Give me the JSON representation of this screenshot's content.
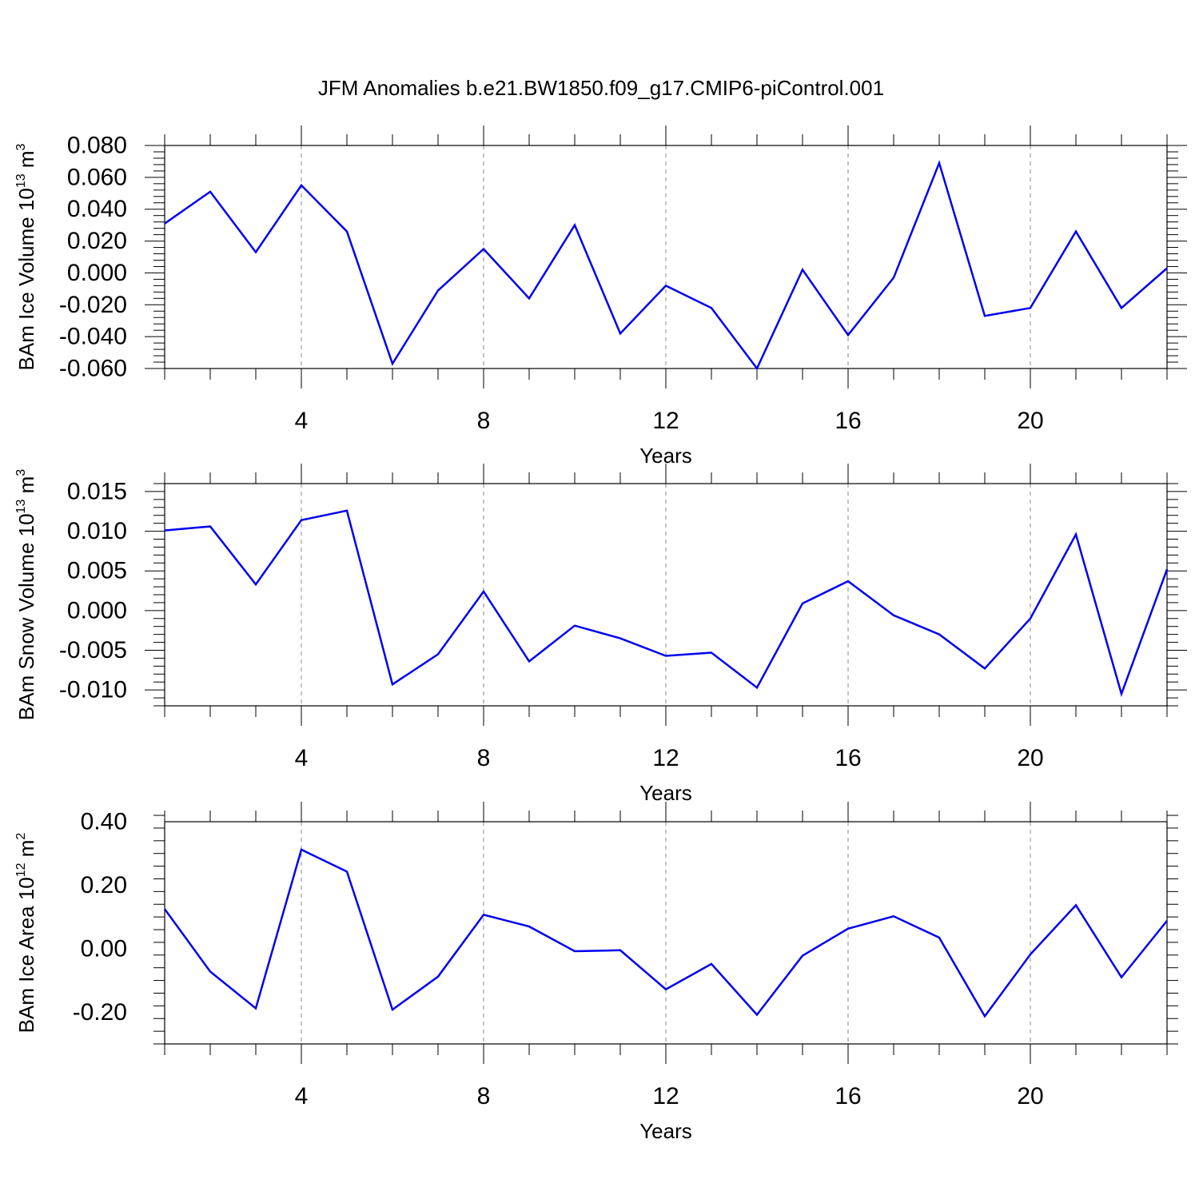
{
  "title": "JFM Anomalies b.e21.BW1850.f09_g17.CMIP6-piControl.001",
  "colors": {
    "line": "#0000ee",
    "axis": "#000000",
    "grid": "#888888"
  },
  "chart_data": [
    {
      "type": "line",
      "xlabel": "Years",
      "ylabel": "BAm Ice Volume 10",
      "ylabel_exp": "13",
      "ylabel_unit": " m",
      "ylabel_unit_exp": "3",
      "xlim": [
        1,
        23
      ],
      "ylim": [
        -0.06,
        0.08
      ],
      "x_ticks": [
        4,
        8,
        12,
        16,
        20
      ],
      "y_ticks": [
        0.08,
        0.06,
        0.04,
        0.02,
        0.0,
        -0.02,
        -0.04,
        -0.06
      ],
      "y_tick_labels": [
        "0.080",
        "0.060",
        "0.040",
        "0.020",
        "0.000",
        "-0.020",
        "-0.040",
        "-0.060"
      ],
      "grid": "dashed vertical at major x ticks",
      "x": [
        1,
        2,
        3,
        4,
        5,
        6,
        7,
        8,
        9,
        10,
        11,
        12,
        13,
        14,
        15,
        16,
        17,
        18,
        19,
        20,
        21,
        22,
        23
      ],
      "values": [
        0.031,
        0.051,
        0.013,
        0.055,
        0.026,
        -0.057,
        -0.011,
        0.015,
        -0.016,
        0.03,
        -0.038,
        -0.008,
        -0.022,
        -0.06,
        0.002,
        -0.039,
        -0.003,
        0.069,
        -0.027,
        -0.022,
        0.026,
        -0.022,
        0.003
      ]
    },
    {
      "type": "line",
      "xlabel": "Years",
      "ylabel": "BAm Snow Volume 10",
      "ylabel_exp": "13",
      "ylabel_unit": " m",
      "ylabel_unit_exp": "3",
      "xlim": [
        1,
        23
      ],
      "ylim": [
        -0.012,
        0.016
      ],
      "x_ticks": [
        4,
        8,
        12,
        16,
        20
      ],
      "y_ticks": [
        0.015,
        0.01,
        0.005,
        0.0,
        -0.005,
        -0.01
      ],
      "y_tick_labels": [
        "0.015",
        "0.010",
        "0.005",
        "0.000",
        "-0.005",
        "-0.010"
      ],
      "grid": "dashed vertical at major x ticks",
      "x": [
        1,
        2,
        3,
        4,
        5,
        6,
        7,
        8,
        9,
        10,
        11,
        12,
        13,
        14,
        15,
        16,
        17,
        18,
        19,
        20,
        21,
        22,
        23
      ],
      "values": [
        0.0101,
        0.0106,
        0.0033,
        0.0114,
        0.0126,
        -0.0093,
        -0.0055,
        0.0024,
        -0.0064,
        -0.0019,
        -0.0035,
        -0.0057,
        -0.0053,
        -0.0097,
        0.0009,
        0.0037,
        -0.0006,
        -0.003,
        -0.0073,
        -0.001,
        0.0096,
        -0.0105,
        0.0052
      ]
    },
    {
      "type": "line",
      "xlabel": "Years",
      "ylabel": "BAm Ice Area 10",
      "ylabel_exp": "12",
      "ylabel_unit": " m",
      "ylabel_unit_exp": "2",
      "xlim": [
        1,
        23
      ],
      "ylim": [
        -0.3,
        0.4
      ],
      "x_ticks": [
        4,
        8,
        12,
        16,
        20
      ],
      "y_ticks": [
        0.4,
        0.2,
        0.0,
        -0.2
      ],
      "y_tick_labels": [
        "0.40",
        "0.20",
        "0.00",
        "-0.20"
      ],
      "grid": "dashed vertical at major x ticks",
      "x": [
        1,
        2,
        3,
        4,
        5,
        6,
        7,
        8,
        9,
        10,
        11,
        12,
        13,
        14,
        15,
        16,
        17,
        18,
        19,
        20,
        21,
        22,
        23
      ],
      "values": [
        0.125,
        -0.072,
        -0.188,
        0.312,
        0.243,
        -0.192,
        -0.088,
        0.107,
        0.07,
        -0.008,
        -0.005,
        -0.128,
        -0.048,
        -0.208,
        -0.022,
        0.063,
        0.102,
        0.035,
        -0.213,
        -0.018,
        0.137,
        -0.09,
        0.088
      ]
    }
  ]
}
